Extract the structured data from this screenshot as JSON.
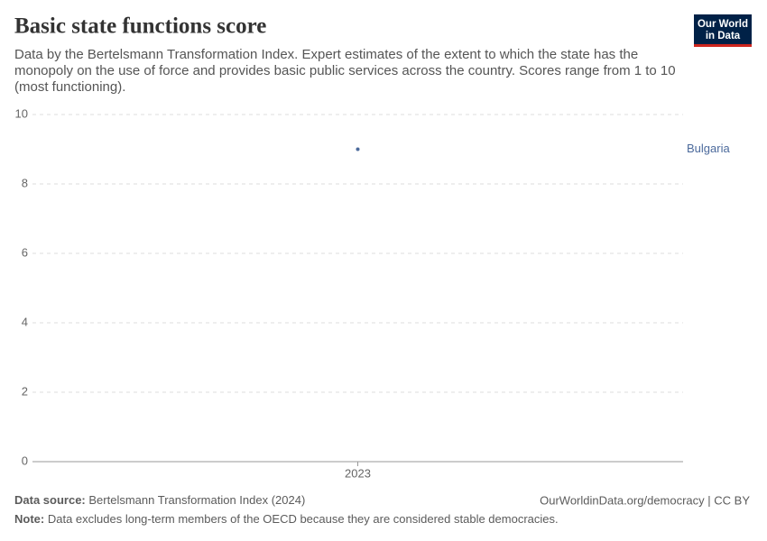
{
  "chart_data": {
    "type": "scatter",
    "title": "Basic state functions score",
    "subtitle": "Data by the Bertelsmann Transformation Index. Expert estimates of the extent to which the state has the monopoly on the use of force and provides basic public services across the country. Scores range from 1 to 10 (most functioning).",
    "logo": [
      "Our World",
      "in Data"
    ],
    "categories": [
      "2023"
    ],
    "series": [
      {
        "name": "Bulgaria",
        "color": "#4c6a9c",
        "values": [
          9
        ]
      }
    ],
    "ylim": [
      0,
      10
    ],
    "yticks": [
      0,
      2,
      4,
      6,
      8,
      10
    ],
    "grid": true,
    "source_label": "Data source:",
    "source": "Bertelsmann Transformation Index (2024)",
    "url": "OurWorldinData.org/democracy | CC BY",
    "note_label": "Note:",
    "note": "Data excludes long-term members of the OECD because they are considered stable democracies."
  }
}
